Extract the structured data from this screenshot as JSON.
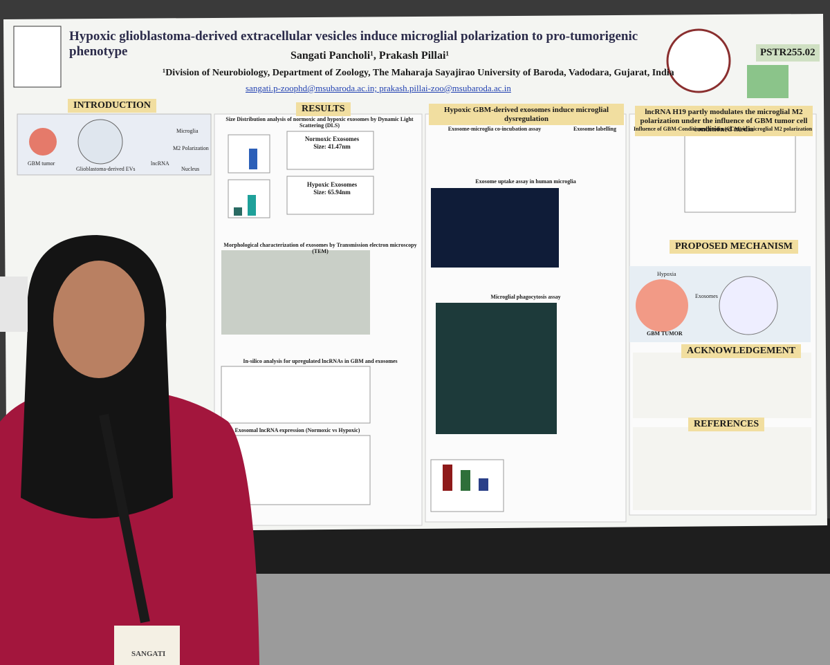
{
  "poster": {
    "title": "Hypoxic glioblastoma-derived extracellular vesicles induce microglial polarization to pro-tumorigenic phenotype",
    "authors": "Sangati Pancholi¹, Prakash Pillai¹",
    "affiliation": "¹Division of Neurobiology, Department of Zoology, The Maharaja Sayajirao University of Baroda, Vadodara, Gujarat, India",
    "emails": "sangati.p-zoophd@msubaroda.ac.in; prakash.pillai-zoo@msubaroda.ac.in",
    "poster_id": "PSTR255.02",
    "sections": {
      "introduction": "INTRODUCTION",
      "results": "RESULTS",
      "dysregulation": "Hypoxic GBM-derived exosomes induce microglial dysregulation",
      "h19": "lncRNA H19 partly modulates the microglial M2 polarization under the influence of GBM tumor cell conditioned media",
      "mechanism": "PROPOSED MECHANISM",
      "acknowledgement": "ACKNOWLEDGEMENT",
      "references": "REFERENCES"
    },
    "subheadings": {
      "dls": "Size Distribution analysis of normoxic and hypoxic exosomes by Dynamic Light Scattering (DLS)",
      "tem": "Morphological characterization of exosomes by Transmission electron microscopy (TEM)",
      "insilico": "In-silico analysis for upregulated lncRNAs in GBM and exosomes",
      "exosomal": "Exosomal lncRNA expression (Normoxic vs Hypoxic)",
      "coincubation": "Exosome-microglia co-incubation assay",
      "labelling": "Exosome labelling",
      "uptake": "Exosome uptake assay in human microglia",
      "phagocytosis": "Microglial phagocytosis assay",
      "ccm": "Influence of GBM-Conditioned media (CCM) in microglial M2 polarization"
    },
    "dls_labels": {
      "normoxic": "Normoxic Exosomes",
      "normoxic_size": "Size: 41.47nm",
      "hypoxic": "Hypoxic Exosomes",
      "hypoxic_size": "Size: 65.94nm"
    },
    "intro_figure": {
      "gbm": "GBM tumor",
      "evs": "Glioblastoma-derived EVs",
      "microglia": "Microglia",
      "m2": "M2 Polarization",
      "lncrna": "lncRNA",
      "nucleus": "Nucleus"
    },
    "mechanism_labels": {
      "hypoxia": "Hypoxia",
      "exosomes": "Exosomes",
      "tumor": "GBM TUMOR"
    },
    "badge": "SANGATI"
  }
}
